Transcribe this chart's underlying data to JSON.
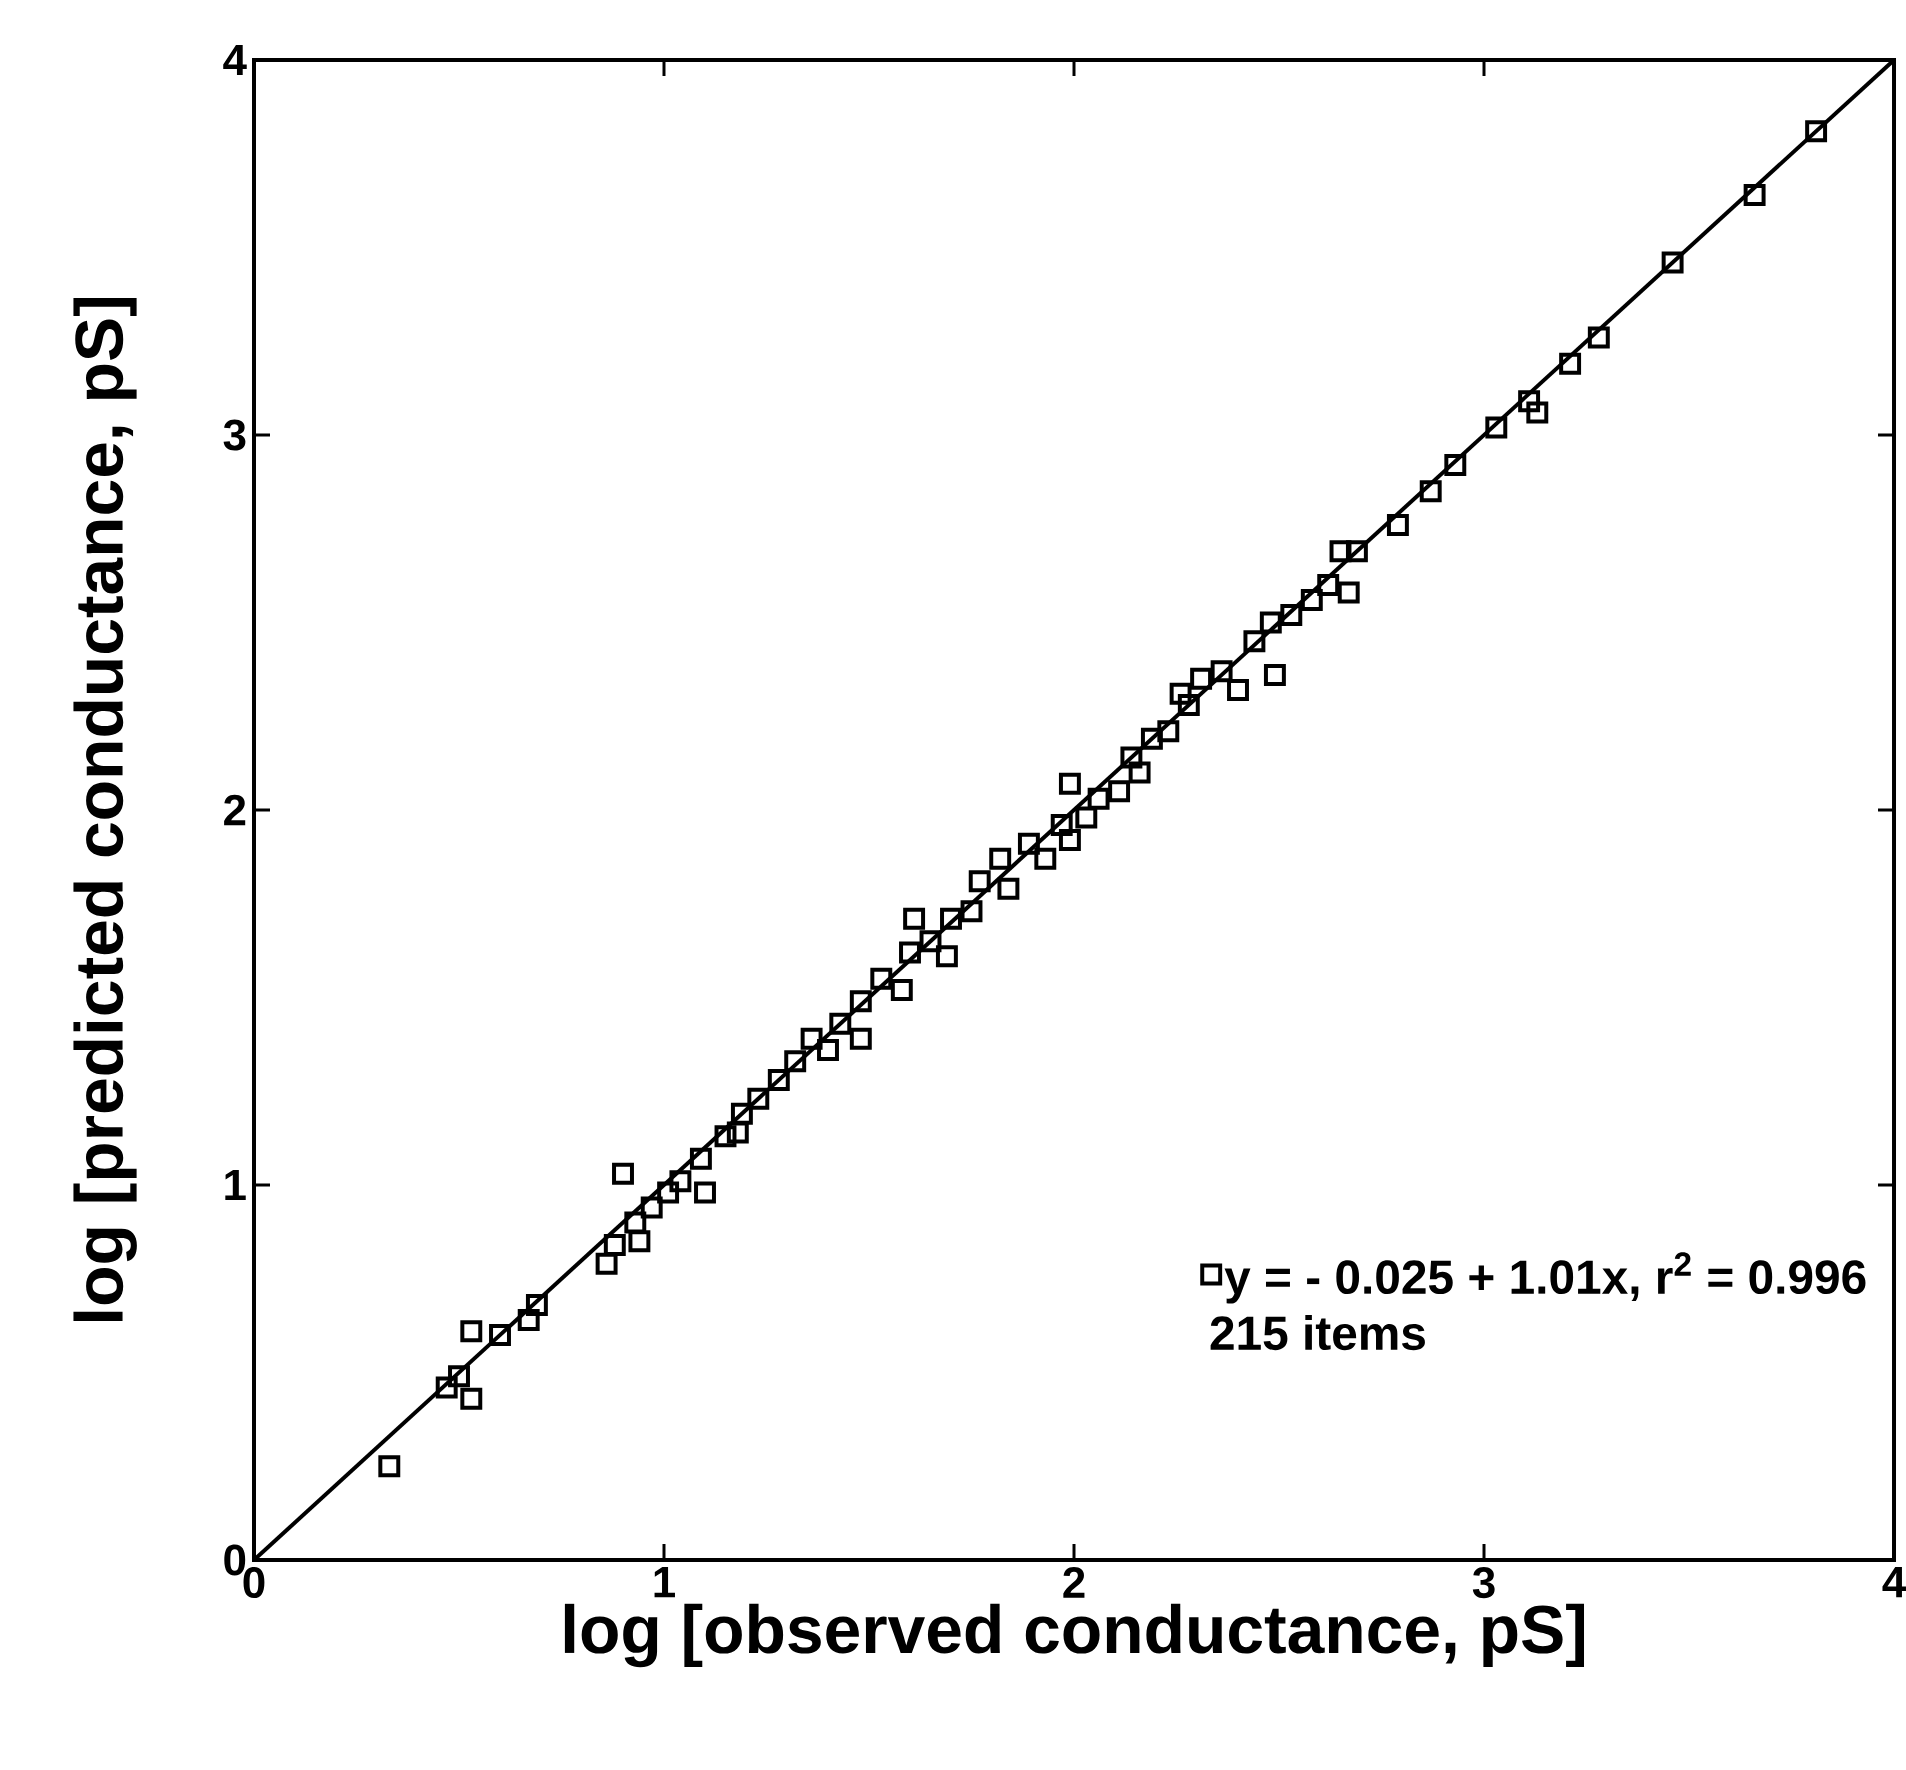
{
  "chart_data": {
    "type": "scatter",
    "xlabel": "log [observed conductance, pS]",
    "ylabel": "log [predicted conductance, pS]",
    "xlim": [
      0,
      4
    ],
    "ylim": [
      0,
      4
    ],
    "xticks": [
      0,
      1,
      2,
      3,
      4
    ],
    "yticks": [
      0,
      1,
      2,
      3,
      4
    ],
    "grid": false,
    "legend": "bottom right",
    "marker": "square",
    "annotations": [
      "215   items"
    ],
    "series": [
      {
        "name": "y =   - 0.025 + 1.01x,   r$^{2}$  = 0.996",
        "color": "#000000",
        "x": [
          0.33,
          0.47,
          0.5,
          0.53,
          0.53,
          0.6,
          0.67,
          0.69,
          0.86,
          0.88,
          0.9,
          0.93,
          0.94,
          0.97,
          1.01,
          1.04,
          1.1,
          1.09,
          1.15,
          1.19,
          1.18,
          1.23,
          1.28,
          1.32,
          1.36,
          1.4,
          1.43,
          1.48,
          1.48,
          1.53,
          1.58,
          1.6,
          1.61,
          1.65,
          1.7,
          1.69,
          1.75,
          1.77,
          1.82,
          1.84,
          1.89,
          1.93,
          1.97,
          1.99,
          1.99,
          2.03,
          2.06,
          2.11,
          2.14,
          2.16,
          2.19,
          2.23,
          2.26,
          2.28,
          2.31,
          2.36,
          2.4,
          2.44,
          2.48,
          2.49,
          2.53,
          2.58,
          2.62,
          2.65,
          2.69,
          2.67,
          2.79,
          2.87,
          2.93,
          3.03,
          3.11,
          3.13,
          3.21,
          3.28,
          3.46,
          3.66,
          3.81
        ],
        "values": [
          0.25,
          0.46,
          0.49,
          0.61,
          0.43,
          0.6,
          0.64,
          0.68,
          0.79,
          0.84,
          1.03,
          0.9,
          0.85,
          0.94,
          0.98,
          1.01,
          0.98,
          1.07,
          1.13,
          1.19,
          1.14,
          1.23,
          1.28,
          1.33,
          1.39,
          1.36,
          1.43,
          1.49,
          1.39,
          1.55,
          1.52,
          1.62,
          1.71,
          1.65,
          1.71,
          1.61,
          1.73,
          1.81,
          1.87,
          1.79,
          1.91,
          1.87,
          1.96,
          1.92,
          2.07,
          1.98,
          2.03,
          2.05,
          2.14,
          2.1,
          2.19,
          2.21,
          2.31,
          2.28,
          2.35,
          2.37,
          2.32,
          2.45,
          2.5,
          2.36,
          2.52,
          2.56,
          2.6,
          2.69,
          2.69,
          2.58,
          2.76,
          2.85,
          2.92,
          3.02,
          3.09,
          3.06,
          3.19,
          3.26,
          3.46,
          3.64,
          3.81
        ]
      },
      {
        "type": "line",
        "color": "#000000",
        "marker": "none",
        "line_style": "solid",
        "x": [
          0,
          4
        ],
        "values": [
          0,
          4
        ]
      }
    ]
  }
}
